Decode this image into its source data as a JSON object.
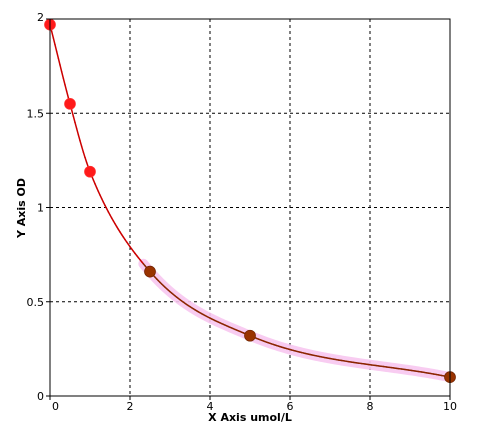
{
  "chart_data": {
    "type": "scatter",
    "title": "",
    "xlabel": "X Axis umol/L",
    "ylabel": "Y Axis OD",
    "xlim": [
      0,
      10
    ],
    "ylim": [
      0,
      2
    ],
    "x_ticks": [
      0,
      2,
      4,
      6,
      8,
      10
    ],
    "y_ticks": [
      0,
      0.5,
      1,
      1.5,
      2
    ],
    "x_tick_labels": [
      "0",
      "2",
      "4",
      "6",
      "8",
      "10"
    ],
    "y_tick_labels": [
      "0",
      "0.5",
      "1",
      "1.5",
      "2"
    ],
    "grid": true,
    "points": {
      "x": [
        0,
        0.5,
        1,
        2.5,
        5,
        10
      ],
      "y": [
        1.97,
        1.55,
        1.19,
        0.66,
        0.32,
        0.1
      ]
    },
    "curve_color": "#cc0000",
    "point_color_high": "#ff1a1a",
    "point_color_low": "#993300",
    "highlight_color": "#f7c6ef"
  }
}
